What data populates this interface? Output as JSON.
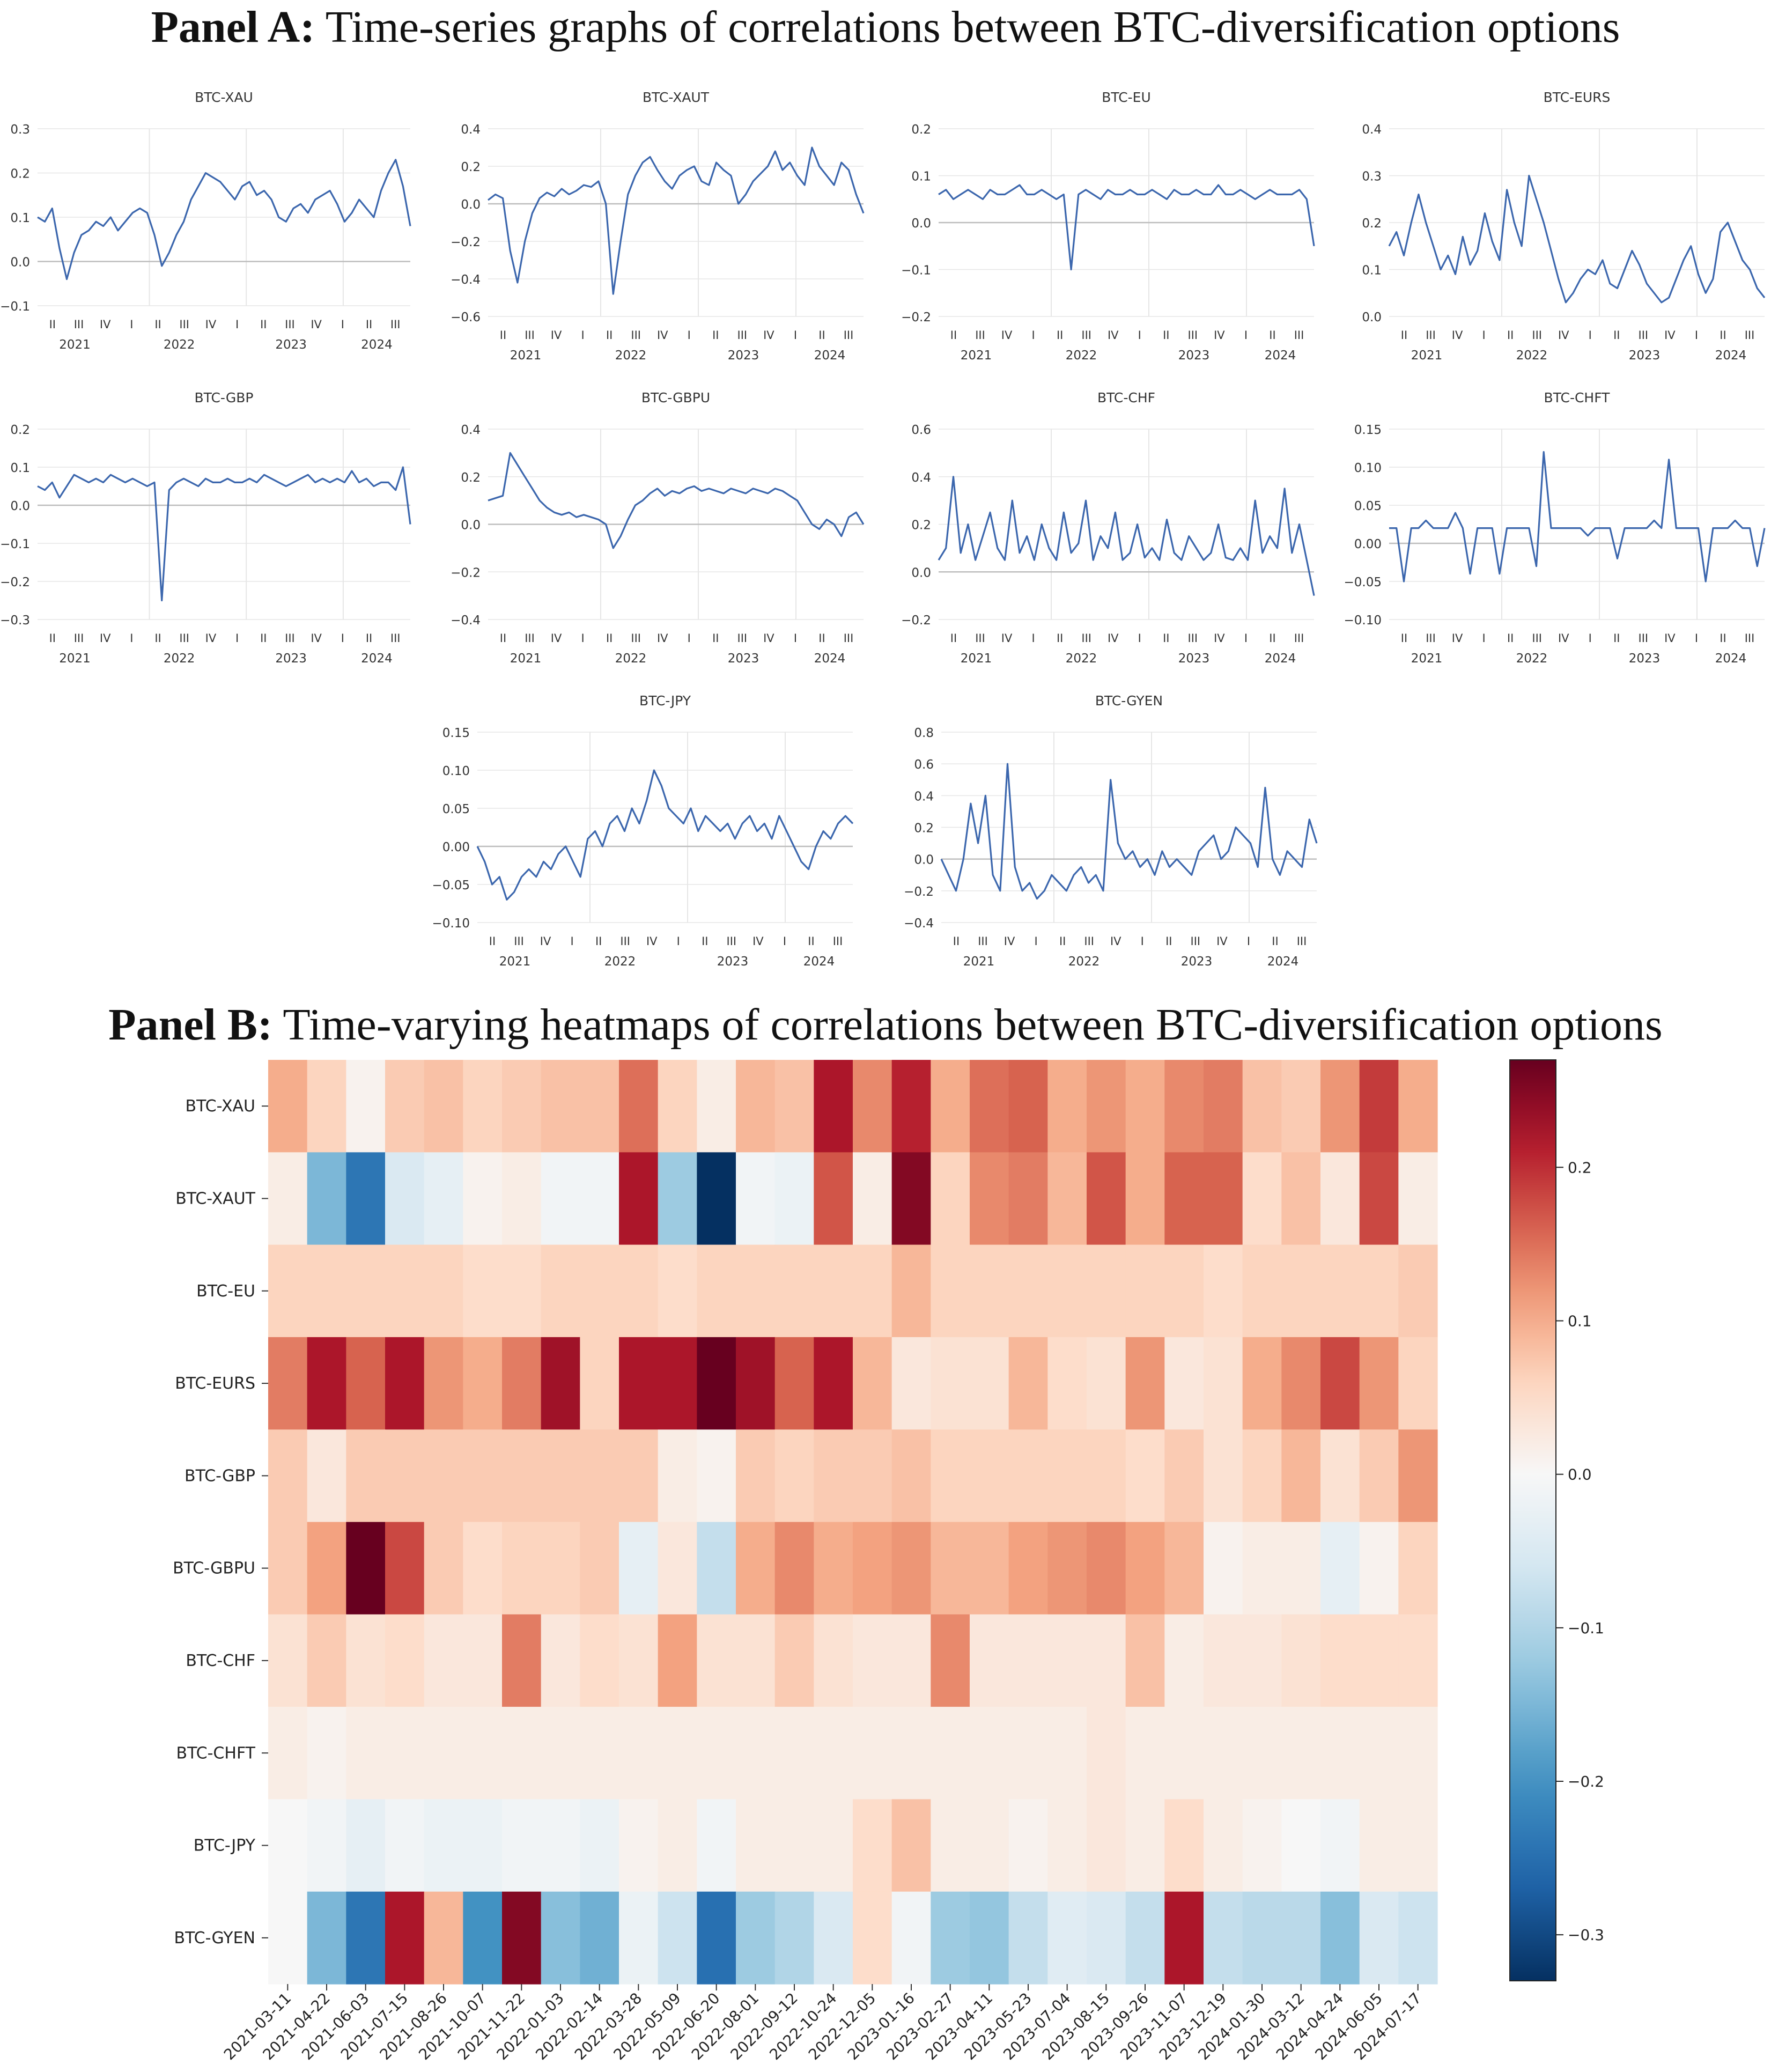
{
  "panel_a": {
    "label": "Panel A:",
    "title": "Time-series graphs of correlations between BTC-diversification options"
  },
  "panel_b": {
    "label": "Panel B:",
    "title": "Time-varying heatmaps of correlations between BTC-diversification options"
  },
  "colors": {
    "line": "#3b66ad",
    "grid": "#e6e6e6",
    "zero": "#bdbdbd"
  },
  "chart_data": [
    {
      "type": "line",
      "title": "BTC-XAU",
      "ylim": [
        -0.1,
        0.3
      ],
      "yticks": [
        "0.3",
        "0.2",
        "0.1",
        "0.0",
        "−0.1"
      ],
      "quarter_ticks": [
        "II",
        "III",
        "IV",
        "I",
        "II",
        "III",
        "IV",
        "I",
        "II",
        "III",
        "IV",
        "I",
        "II",
        "III"
      ],
      "year_labels": [
        "2021",
        "2022",
        "2023",
        "2024"
      ],
      "values": [
        0.1,
        0.09,
        0.12,
        0.03,
        -0.04,
        0.02,
        0.06,
        0.07,
        0.09,
        0.08,
        0.1,
        0.07,
        0.09,
        0.11,
        0.12,
        0.11,
        0.06,
        -0.01,
        0.02,
        0.06,
        0.09,
        0.14,
        0.17,
        0.2,
        0.19,
        0.18,
        0.16,
        0.14,
        0.17,
        0.18,
        0.15,
        0.16,
        0.14,
        0.1,
        0.09,
        0.12,
        0.13,
        0.11,
        0.14,
        0.15,
        0.16,
        0.13,
        0.09,
        0.11,
        0.14,
        0.12,
        0.1,
        0.16,
        0.2,
        0.23,
        0.17,
        0.08
      ]
    },
    {
      "type": "line",
      "title": "BTC-XAUT",
      "ylim": [
        -0.6,
        0.4
      ],
      "yticks": [
        "0.4",
        "0.2",
        "0.0",
        "−0.2",
        "−0.4",
        "−0.6"
      ],
      "quarter_ticks": [
        "II",
        "III",
        "IV",
        "I",
        "II",
        "III",
        "IV",
        "I",
        "II",
        "III",
        "IV",
        "I",
        "II",
        "III"
      ],
      "year_labels": [
        "2021",
        "2022",
        "2023",
        "2024"
      ],
      "values": [
        0.02,
        0.05,
        0.03,
        -0.25,
        -0.42,
        -0.2,
        -0.05,
        0.03,
        0.06,
        0.04,
        0.08,
        0.05,
        0.07,
        0.1,
        0.09,
        0.12,
        0.0,
        -0.48,
        -0.2,
        0.05,
        0.15,
        0.22,
        0.25,
        0.18,
        0.12,
        0.08,
        0.15,
        0.18,
        0.2,
        0.12,
        0.1,
        0.22,
        0.18,
        0.15,
        0.0,
        0.05,
        0.12,
        0.16,
        0.2,
        0.28,
        0.18,
        0.22,
        0.15,
        0.1,
        0.3,
        0.2,
        0.15,
        0.1,
        0.22,
        0.18,
        0.05,
        -0.05
      ]
    },
    {
      "type": "line",
      "title": "BTC-EU",
      "ylim": [
        -0.2,
        0.2
      ],
      "yticks": [
        "0.2",
        "0.1",
        "0.0",
        "−0.1",
        "−0.2"
      ],
      "quarter_ticks": [
        "II",
        "III",
        "IV",
        "I",
        "II",
        "III",
        "IV",
        "I",
        "II",
        "III",
        "IV",
        "I",
        "II",
        "III"
      ],
      "year_labels": [
        "2021",
        "2022",
        "2023",
        "2024"
      ],
      "values": [
        0.06,
        0.07,
        0.05,
        0.06,
        0.07,
        0.06,
        0.05,
        0.07,
        0.06,
        0.06,
        0.07,
        0.08,
        0.06,
        0.06,
        0.07,
        0.06,
        0.05,
        0.06,
        -0.1,
        0.06,
        0.07,
        0.06,
        0.05,
        0.07,
        0.06,
        0.06,
        0.07,
        0.06,
        0.06,
        0.07,
        0.06,
        0.05,
        0.07,
        0.06,
        0.06,
        0.07,
        0.06,
        0.06,
        0.08,
        0.06,
        0.06,
        0.07,
        0.06,
        0.05,
        0.06,
        0.07,
        0.06,
        0.06,
        0.06,
        0.07,
        0.05,
        -0.05
      ]
    },
    {
      "type": "line",
      "title": "BTC-EURS",
      "ylim": [
        0.0,
        0.4
      ],
      "yticks": [
        "0.4",
        "0.3",
        "0.2",
        "0.1",
        "0.0"
      ],
      "quarter_ticks": [
        "II",
        "III",
        "IV",
        "I",
        "II",
        "III",
        "IV",
        "I",
        "II",
        "III",
        "IV",
        "I",
        "II",
        "III"
      ],
      "year_labels": [
        "2021",
        "2022",
        "2023",
        "2024"
      ],
      "values": [
        0.15,
        0.18,
        0.13,
        0.2,
        0.26,
        0.2,
        0.15,
        0.1,
        0.13,
        0.09,
        0.17,
        0.11,
        0.14,
        0.22,
        0.16,
        0.12,
        0.27,
        0.2,
        0.15,
        0.3,
        0.25,
        0.2,
        0.14,
        0.08,
        0.03,
        0.05,
        0.08,
        0.1,
        0.09,
        0.12,
        0.07,
        0.06,
        0.1,
        0.14,
        0.11,
        0.07,
        0.05,
        0.03,
        0.04,
        0.08,
        0.12,
        0.15,
        0.09,
        0.05,
        0.08,
        0.18,
        0.2,
        0.16,
        0.12,
        0.1,
        0.06,
        0.04
      ]
    },
    {
      "type": "line",
      "title": "BTC-GBP",
      "ylim": [
        -0.3,
        0.2
      ],
      "yticks": [
        "0.2",
        "0.1",
        "0.0",
        "−0.1",
        "−0.2",
        "−0.3"
      ],
      "quarter_ticks": [
        "II",
        "III",
        "IV",
        "I",
        "II",
        "III",
        "IV",
        "I",
        "II",
        "III",
        "IV",
        "I",
        "II",
        "III"
      ],
      "year_labels": [
        "2021",
        "2022",
        "2023",
        "2024"
      ],
      "values": [
        0.05,
        0.04,
        0.06,
        0.02,
        0.05,
        0.08,
        0.07,
        0.06,
        0.07,
        0.06,
        0.08,
        0.07,
        0.06,
        0.07,
        0.06,
        0.05,
        0.06,
        -0.25,
        0.04,
        0.06,
        0.07,
        0.06,
        0.05,
        0.07,
        0.06,
        0.06,
        0.07,
        0.06,
        0.06,
        0.07,
        0.06,
        0.08,
        0.07,
        0.06,
        0.05,
        0.06,
        0.07,
        0.08,
        0.06,
        0.07,
        0.06,
        0.07,
        0.06,
        0.09,
        0.06,
        0.07,
        0.05,
        0.06,
        0.06,
        0.04,
        0.1,
        -0.05
      ]
    },
    {
      "type": "line",
      "title": "BTC-GBPU",
      "ylim": [
        -0.4,
        0.4
      ],
      "yticks": [
        "0.4",
        "0.2",
        "0.0",
        "−0.2",
        "−0.4"
      ],
      "quarter_ticks": [
        "II",
        "III",
        "IV",
        "I",
        "II",
        "III",
        "IV",
        "I",
        "II",
        "III",
        "IV",
        "I",
        "II",
        "III"
      ],
      "year_labels": [
        "2021",
        "2022",
        "2023",
        "2024"
      ],
      "values": [
        0.1,
        0.11,
        0.12,
        0.3,
        0.25,
        0.2,
        0.15,
        0.1,
        0.07,
        0.05,
        0.04,
        0.05,
        0.03,
        0.04,
        0.03,
        0.02,
        0.0,
        -0.1,
        -0.05,
        0.02,
        0.08,
        0.1,
        0.13,
        0.15,
        0.12,
        0.14,
        0.13,
        0.15,
        0.16,
        0.14,
        0.15,
        0.14,
        0.13,
        0.15,
        0.14,
        0.13,
        0.15,
        0.14,
        0.13,
        0.15,
        0.14,
        0.12,
        0.1,
        0.05,
        0.0,
        -0.02,
        0.02,
        0.0,
        -0.05,
        0.03,
        0.05,
        0.0
      ]
    },
    {
      "type": "line",
      "title": "BTC-CHF",
      "ylim": [
        -0.2,
        0.6
      ],
      "yticks": [
        "0.6",
        "0.4",
        "0.2",
        "0.0",
        "−0.2"
      ],
      "quarter_ticks": [
        "II",
        "III",
        "IV",
        "I",
        "II",
        "III",
        "IV",
        "I",
        "II",
        "III",
        "IV",
        "I",
        "II",
        "III"
      ],
      "year_labels": [
        "2021",
        "2022",
        "2023",
        "2024"
      ],
      "values": [
        0.05,
        0.1,
        0.4,
        0.08,
        0.2,
        0.05,
        0.15,
        0.25,
        0.1,
        0.05,
        0.3,
        0.08,
        0.15,
        0.05,
        0.2,
        0.1,
        0.05,
        0.25,
        0.08,
        0.12,
        0.3,
        0.05,
        0.15,
        0.1,
        0.25,
        0.05,
        0.08,
        0.2,
        0.06,
        0.1,
        0.05,
        0.22,
        0.08,
        0.05,
        0.15,
        0.1,
        0.05,
        0.08,
        0.2,
        0.06,
        0.05,
        0.1,
        0.05,
        0.3,
        0.08,
        0.15,
        0.1,
        0.35,
        0.08,
        0.2,
        0.05,
        -0.1
      ]
    },
    {
      "type": "line",
      "title": "BTC-CHFT",
      "ylim": [
        -0.1,
        0.15
      ],
      "yticks": [
        "0.15",
        "0.10",
        "0.05",
        "0.00",
        "−0.05",
        "−0.10"
      ],
      "quarter_ticks": [
        "II",
        "III",
        "IV",
        "I",
        "II",
        "III",
        "IV",
        "I",
        "II",
        "III",
        "IV",
        "I",
        "II",
        "III"
      ],
      "year_labels": [
        "2021",
        "2022",
        "2023",
        "2024"
      ],
      "values": [
        0.02,
        0.02,
        -0.05,
        0.02,
        0.02,
        0.03,
        0.02,
        0.02,
        0.02,
        0.04,
        0.02,
        -0.04,
        0.02,
        0.02,
        0.02,
        -0.04,
        0.02,
        0.02,
        0.02,
        0.02,
        -0.03,
        0.12,
        0.02,
        0.02,
        0.02,
        0.02,
        0.02,
        0.01,
        0.02,
        0.02,
        0.02,
        -0.02,
        0.02,
        0.02,
        0.02,
        0.02,
        0.03,
        0.02,
        0.11,
        0.02,
        0.02,
        0.02,
        0.02,
        -0.05,
        0.02,
        0.02,
        0.02,
        0.03,
        0.02,
        0.02,
        -0.03,
        0.02
      ]
    },
    {
      "type": "line",
      "title": "BTC-JPY",
      "ylim": [
        -0.1,
        0.15
      ],
      "yticks": [
        "0.15",
        "0.10",
        "0.05",
        "0.00",
        "−0.05",
        "−0.10"
      ],
      "quarter_ticks": [
        "II",
        "III",
        "IV",
        "I",
        "II",
        "III",
        "IV",
        "I",
        "II",
        "III",
        "IV",
        "I",
        "II",
        "III"
      ],
      "year_labels": [
        "2021",
        "2022",
        "2023",
        "2024"
      ],
      "values": [
        0.0,
        -0.02,
        -0.05,
        -0.04,
        -0.07,
        -0.06,
        -0.04,
        -0.03,
        -0.04,
        -0.02,
        -0.03,
        -0.01,
        0.0,
        -0.02,
        -0.04,
        0.01,
        0.02,
        0.0,
        0.03,
        0.04,
        0.02,
        0.05,
        0.03,
        0.06,
        0.1,
        0.08,
        0.05,
        0.04,
        0.03,
        0.05,
        0.02,
        0.04,
        0.03,
        0.02,
        0.03,
        0.01,
        0.03,
        0.04,
        0.02,
        0.03,
        0.01,
        0.04,
        0.02,
        0.0,
        -0.02,
        -0.03,
        0.0,
        0.02,
        0.01,
        0.03,
        0.04,
        0.03
      ]
    },
    {
      "type": "line",
      "title": "BTC-GYEN",
      "ylim": [
        -0.4,
        0.8
      ],
      "yticks": [
        "0.8",
        "0.6",
        "0.4",
        "0.2",
        "0.0",
        "−0.2",
        "−0.4"
      ],
      "quarter_ticks": [
        "II",
        "III",
        "IV",
        "I",
        "II",
        "III",
        "IV",
        "I",
        "II",
        "III",
        "IV",
        "I",
        "II",
        "III"
      ],
      "year_labels": [
        "2021",
        "2022",
        "2023",
        "2024"
      ],
      "values": [
        0.0,
        -0.1,
        -0.2,
        0.0,
        0.35,
        0.1,
        0.4,
        -0.1,
        -0.2,
        0.6,
        -0.05,
        -0.2,
        -0.15,
        -0.25,
        -0.2,
        -0.1,
        -0.15,
        -0.2,
        -0.1,
        -0.05,
        -0.15,
        -0.1,
        -0.2,
        0.5,
        0.1,
        0.0,
        0.05,
        -0.05,
        0.0,
        -0.1,
        0.05,
        -0.05,
        0.0,
        -0.05,
        -0.1,
        0.05,
        0.1,
        0.15,
        0.0,
        0.05,
        0.2,
        0.15,
        0.1,
        -0.05,
        0.45,
        0.0,
        -0.1,
        0.05,
        0.0,
        -0.05,
        0.25,
        0.1
      ]
    },
    {
      "type": "heatmap",
      "title": "",
      "rows": [
        "BTC-XAU",
        "BTC-XAUT",
        "BTC-EU",
        "BTC-EURS",
        "BTC-GBP",
        "BTC-GBPU",
        "BTC-CHF",
        "BTC-CHFT",
        "BTC-JPY",
        "BTC-GYEN"
      ],
      "columns": [
        "2021-03-11",
        "2021-04-22",
        "2021-06-03",
        "2021-07-15",
        "2021-08-26",
        "2021-10-07",
        "2021-11-22",
        "2022-01-03",
        "2022-02-14",
        "2022-03-28",
        "2022-05-09",
        "2022-06-20",
        "2022-08-01",
        "2022-09-12",
        "2022-10-24",
        "2022-12-05",
        "2023-01-16",
        "2023-02-27",
        "2023-04-11",
        "2023-05-23",
        "2023-07-04",
        "2023-08-15",
        "2023-09-26",
        "2023-11-07",
        "2023-12-19",
        "2024-01-30",
        "2024-03-12",
        "2024-04-24",
        "2024-06-05",
        "2024-07-17"
      ],
      "values": [
        [
          0.1,
          0.06,
          0.01,
          0.07,
          0.08,
          0.06,
          0.07,
          0.08,
          0.08,
          0.15,
          0.06,
          0.02,
          0.09,
          0.08,
          0.22,
          0.13,
          0.21,
          0.1,
          0.15,
          0.16,
          0.1,
          0.12,
          0.1,
          0.13,
          0.14,
          0.08,
          0.07,
          0.12,
          0.19,
          0.1
        ],
        [
          0.02,
          -0.15,
          -0.24,
          -0.05,
          -0.03,
          0.01,
          0.02,
          -0.01,
          -0.01,
          0.22,
          -0.12,
          -0.33,
          -0.01,
          -0.02,
          0.17,
          0.02,
          0.25,
          0.06,
          0.13,
          0.14,
          0.09,
          0.17,
          0.1,
          0.16,
          0.16,
          0.05,
          0.08,
          0.03,
          0.18,
          0.02
        ],
        [
          0.06,
          0.06,
          0.06,
          0.06,
          0.06,
          0.05,
          0.05,
          0.06,
          0.06,
          0.06,
          0.05,
          0.06,
          0.06,
          0.06,
          0.06,
          0.06,
          0.09,
          0.06,
          0.06,
          0.06,
          0.06,
          0.06,
          0.06,
          0.06,
          0.05,
          0.06,
          0.06,
          0.06,
          0.06,
          0.07
        ],
        [
          0.14,
          0.22,
          0.16,
          0.22,
          0.12,
          0.1,
          0.14,
          0.23,
          0.06,
          0.22,
          0.22,
          0.27,
          0.23,
          0.16,
          0.22,
          0.09,
          0.03,
          0.04,
          0.04,
          0.09,
          0.05,
          0.04,
          0.12,
          0.03,
          0.04,
          0.1,
          0.13,
          0.18,
          0.12,
          0.06
        ],
        [
          0.07,
          0.03,
          0.07,
          0.07,
          0.07,
          0.07,
          0.07,
          0.07,
          0.07,
          0.07,
          0.02,
          0.01,
          0.07,
          0.06,
          0.07,
          0.07,
          0.08,
          0.06,
          0.06,
          0.06,
          0.06,
          0.06,
          0.05,
          0.07,
          0.04,
          0.06,
          0.09,
          0.04,
          0.07,
          0.12
        ],
        [
          0.07,
          0.11,
          0.27,
          0.18,
          0.07,
          0.05,
          0.06,
          0.06,
          0.07,
          -0.03,
          0.03,
          -0.08,
          0.1,
          0.13,
          0.1,
          0.11,
          0.12,
          0.09,
          0.09,
          0.11,
          0.12,
          0.13,
          0.11,
          0.09,
          0.01,
          0.02,
          0.02,
          -0.03,
          0.01,
          0.06
        ],
        [
          0.04,
          0.07,
          0.04,
          0.05,
          0.03,
          0.03,
          0.14,
          0.03,
          0.05,
          0.04,
          0.11,
          0.04,
          0.04,
          0.07,
          0.04,
          0.03,
          0.03,
          0.13,
          0.03,
          0.03,
          0.03,
          0.03,
          0.08,
          0.02,
          0.03,
          0.03,
          0.04,
          0.05,
          0.05,
          0.05
        ],
        [
          0.02,
          0.01,
          0.02,
          0.02,
          0.02,
          0.02,
          0.02,
          0.02,
          0.02,
          0.02,
          0.02,
          0.02,
          0.02,
          0.02,
          0.02,
          0.02,
          0.02,
          0.02,
          0.02,
          0.02,
          0.02,
          0.03,
          0.02,
          0.02,
          0.02,
          0.02,
          0.02,
          0.02,
          0.02,
          0.02
        ],
        [
          0.0,
          -0.01,
          -0.03,
          -0.01,
          -0.02,
          -0.02,
          -0.01,
          -0.01,
          -0.02,
          0.01,
          0.02,
          -0.01,
          0.02,
          0.02,
          0.02,
          0.05,
          0.08,
          0.02,
          0.02,
          0.01,
          0.02,
          0.03,
          0.02,
          0.05,
          0.02,
          0.01,
          0.0,
          -0.01,
          0.02,
          0.02
        ],
        [
          0.0,
          -0.15,
          -0.24,
          0.22,
          0.09,
          -0.2,
          0.25,
          -0.14,
          -0.16,
          -0.02,
          -0.07,
          -0.25,
          -0.12,
          -0.1,
          -0.05,
          0.05,
          -0.01,
          -0.12,
          -0.13,
          -0.08,
          -0.04,
          -0.05,
          -0.08,
          0.22,
          -0.08,
          -0.09,
          -0.09,
          -0.14,
          -0.05,
          -0.07
        ]
      ],
      "colorbar": {
        "range": [
          -0.33,
          0.27
        ],
        "ticks": [
          "0.2",
          "0.1",
          "0.0",
          "−0.1",
          "−0.2",
          "−0.3"
        ],
        "colormap": "RdBu_r"
      }
    }
  ]
}
